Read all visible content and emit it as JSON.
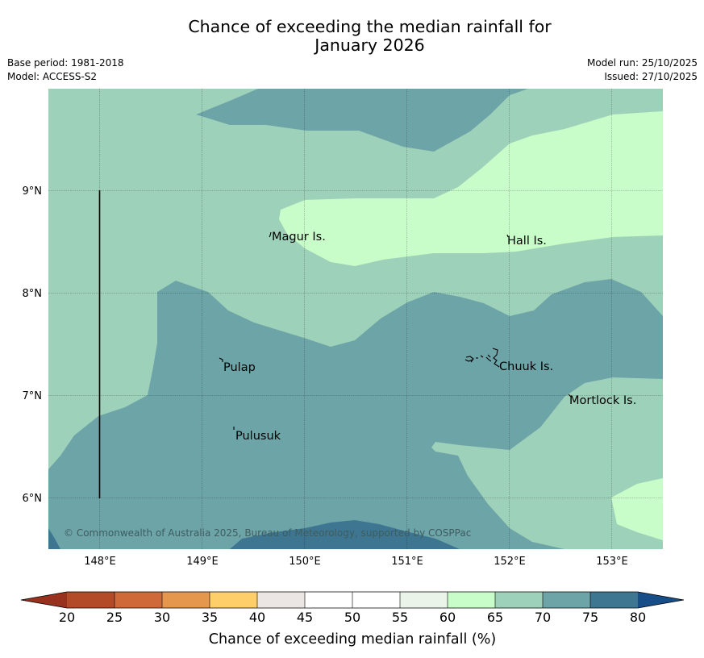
{
  "title": {
    "line1": "Chance of exceeding the median rainfall for",
    "line2": "January 2026"
  },
  "meta": {
    "base_period": "Base period: 1981-2018",
    "model": "Model: ACCESS-S2",
    "model_run": "Model run: 25/10/2025",
    "issued": "Issued: 27/10/2025"
  },
  "map": {
    "lat_ticks": [
      "9°N",
      "8°N",
      "7°N",
      "6°N"
    ],
    "lon_ticks": [
      "148°E",
      "149°E",
      "150°E",
      "151°E",
      "152°E",
      "153°E"
    ],
    "places": [
      "Magur Is.",
      "Hall Is.",
      "Pulap",
      "Chuuk Is.",
      "Mortlock Is.",
      "Pulusuk"
    ],
    "copyright": "© Commonwealth of Australia 2025, Bureau of Meteorology, supported by COSPPac"
  },
  "colors": {
    "c20_25": "#b44b28",
    "c25_30": "#d0693a",
    "c30_35": "#e5974d",
    "c35_40": "#fdce6a",
    "c40_45": "#ebe6e3",
    "c45_50": "#ffffff",
    "c50_55": "#ffffff",
    "c55_60": "#eaf4e9",
    "c60_65": "#c8fcc8",
    "c65_70": "#9ed1b9",
    "c70_75": "#6da4a8",
    "c75_80": "#3e7692",
    "c_over": "#174e88",
    "c_under": "#98321e"
  },
  "colorbar": {
    "ticks": [
      "20",
      "25",
      "30",
      "35",
      "40",
      "45",
      "50",
      "55",
      "60",
      "65",
      "70",
      "75",
      "80"
    ],
    "label": "Chance of exceeding median rainfall (%)"
  }
}
